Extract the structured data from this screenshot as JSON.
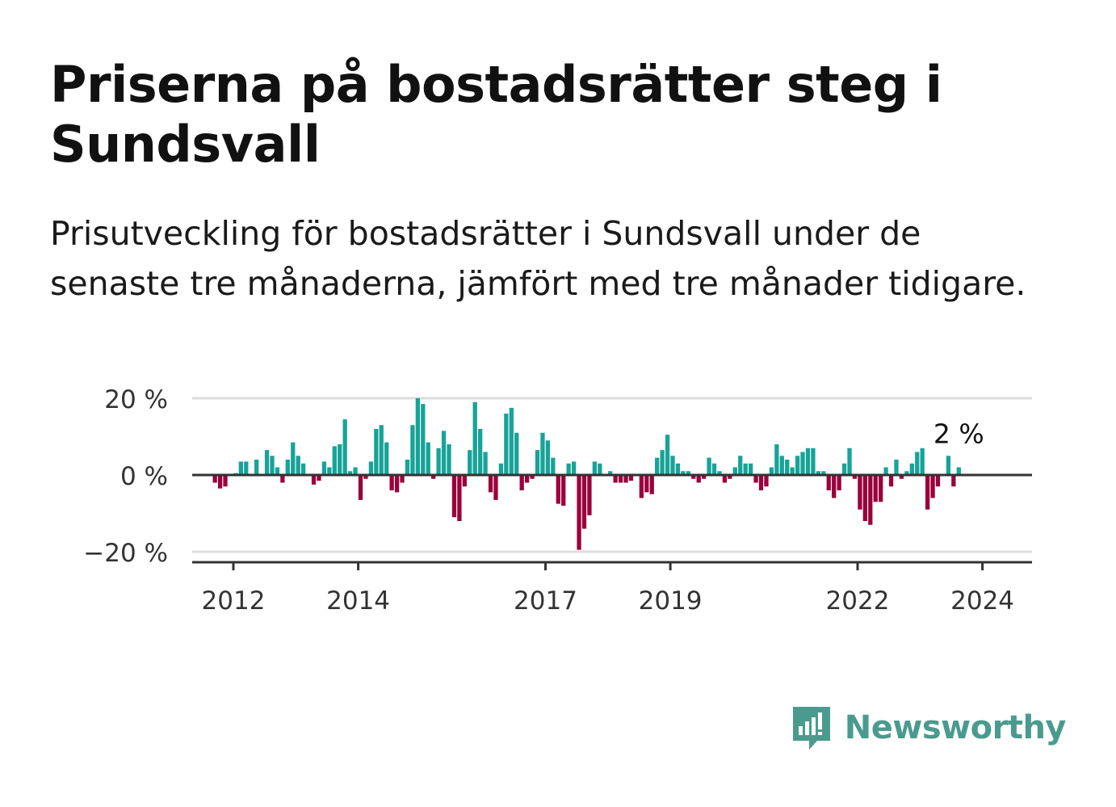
{
  "title": "Priserna på bostadsrätter steg i Sundsvall",
  "subtitle": "Prisutveckling för bostadsrätter i Sundsvall under de senaste tre månaderna, jämfört med tre månader tidigare.",
  "brand": {
    "name": "Newsworthy",
    "color": "#4a9b8e"
  },
  "colors": {
    "positive": "#17a398",
    "negative": "#9a003b",
    "grid": "#dddddd",
    "axis": "#333333"
  },
  "chart_data": {
    "type": "bar",
    "y_unit": "%",
    "ylim": [
      -22,
      22
    ],
    "y_ticks": [
      20,
      0,
      -20
    ],
    "y_tick_labels": [
      "20 %",
      "0 %",
      "−20 %"
    ],
    "x_ticks": [
      2012,
      2014,
      2017,
      2019,
      2022,
      2024
    ],
    "x_tick_labels": [
      "2012",
      "2014",
      "2017",
      "2019",
      "2022",
      "2024"
    ],
    "x_start": 2011.67,
    "months_per_bar": 1,
    "last_value_label": "2 %",
    "values": [
      -2,
      -3.5,
      -3,
      0,
      0.5,
      3.5,
      3.5,
      0,
      4,
      0,
      6.5,
      5,
      2,
      -2,
      4,
      8.5,
      5,
      3,
      0,
      -2.5,
      -1.5,
      3.5,
      2,
      7.5,
      8,
      14.5,
      1,
      2,
      -6.5,
      -1,
      3.5,
      12,
      13,
      8.5,
      -4,
      -4.5,
      -2,
      4,
      13,
      20,
      18.5,
      8.5,
      -1,
      7,
      11.5,
      8,
      -11,
      -12,
      -3,
      6.5,
      19,
      12,
      6,
      -4.5,
      -6.5,
      3,
      16,
      17.5,
      11,
      -4,
      -2,
      -1,
      6.5,
      11,
      9,
      4.5,
      -7.5,
      -8,
      3,
      3.5,
      -19.5,
      -14,
      -10.5,
      3.5,
      3,
      0,
      1,
      -2,
      -2,
      -2,
      -1.5,
      0,
      -6,
      -4.5,
      -5,
      4.5,
      6.5,
      10.5,
      5,
      3,
      1,
      1,
      -1,
      -2,
      -1,
      4.5,
      3,
      1,
      -2,
      -1,
      2,
      5,
      3,
      3,
      -2,
      -4,
      -3,
      2,
      8,
      5,
      4,
      2,
      5,
      6,
      7,
      7,
      1,
      1,
      -4,
      -6,
      -4,
      3,
      7,
      -1,
      -9,
      -12,
      -13,
      -7,
      -7,
      2,
      -3,
      4,
      -1,
      1,
      3,
      6,
      7,
      -9,
      -6,
      -3,
      0,
      5,
      -3,
      2
    ]
  }
}
